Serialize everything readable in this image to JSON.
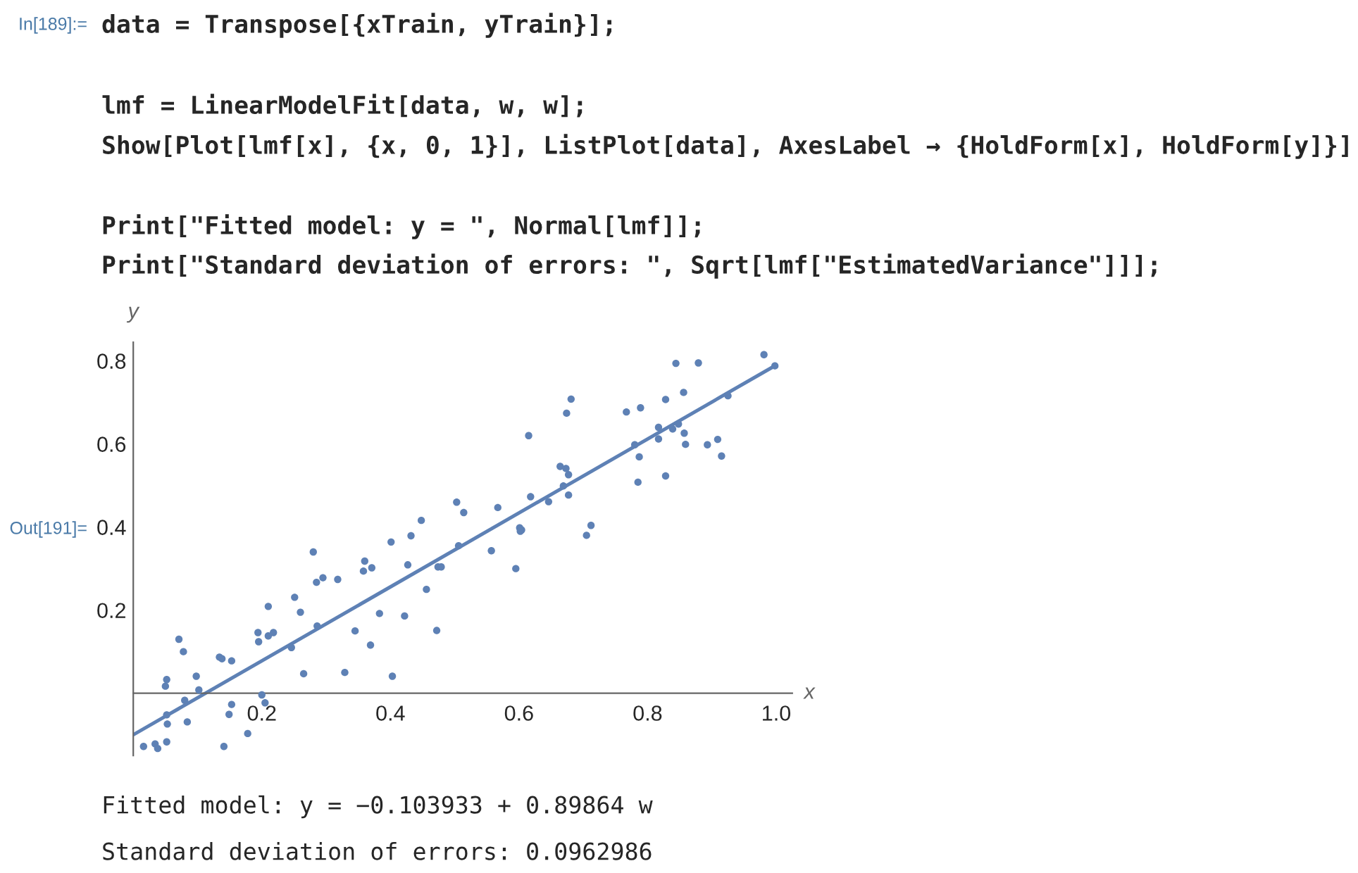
{
  "chart_data": {
    "type": "scatter",
    "xlabel": "x",
    "ylabel": "y",
    "annotations": [
      "In[189]:=",
      "data = Transpose[{xTrain, yTrain}];",
      "lmf = LinearModelFit[data, w, w];",
      "Show[Plot[lmf[x], {x, 0, 1}], ListPlot[data], AxesLabel → {HoldForm[x], HoldForm[y]}]",
      "Print[\"Fitted model: y = \", Normal[lmf]];",
      "Print[\"Standard deviation of errors: \", Sqrt[lmf[\"EstimatedVariance\"]]];",
      "Out[191]=",
      "Fitted model: y = −0.103933 + 0.89864 w",
      "Standard deviation of errors: 0.0962986"
    ],
    "xlim": [
      0,
      1.025
    ],
    "ylim": [
      -0.15,
      0.845
    ],
    "xticks": [
      0.2,
      0.4,
      0.6,
      0.8,
      {
        "value": 1,
        "label": "1.0"
      }
    ],
    "yticks": [
      0.2,
      0.4,
      0.6,
      0.8
    ],
    "grid": false,
    "legend": false,
    "series": [
      {
        "color": "#5e81b5",
        "marker": "circle",
        "x": [
          0.016,
          0.034,
          0.038,
          0.052,
          0.05,
          0.052,
          0.052,
          0.053,
          0.071,
          0.078,
          0.08,
          0.084,
          0.098,
          0.102,
          0.134,
          0.138,
          0.141,
          0.149,
          0.153,
          0.153,
          0.178,
          0.194,
          0.195,
          0.2,
          0.205,
          0.21,
          0.21,
          0.218,
          0.246,
          0.251,
          0.26,
          0.265,
          0.28,
          0.285,
          0.286,
          0.295,
          0.318,
          0.329,
          0.345,
          0.36,
          0.358,
          0.369,
          0.371,
          0.383,
          0.401,
          0.403,
          0.422,
          0.427,
          0.432,
          0.448,
          0.456,
          0.472,
          0.474,
          0.479,
          0.503,
          0.514,
          0.506,
          0.557,
          0.567,
          0.595,
          0.601,
          0.602,
          0.604,
          0.615,
          0.618,
          0.646,
          0.664,
          0.673,
          0.677,
          0.669,
          0.677,
          0.674,
          0.681,
          0.705,
          0.712,
          0.767,
          0.78,
          0.785,
          0.787,
          0.789,
          0.817,
          0.817,
          0.828,
          0.828,
          0.839,
          0.844,
          0.848,
          0.856,
          0.857,
          0.859,
          0.879,
          0.893,
          0.909,
          0.915,
          0.925,
          0.981,
          0.998
        ],
        "values": [
          -0.128,
          -0.122,
          -0.133,
          -0.117,
          0.017,
          0.033,
          -0.052,
          -0.074,
          0.13,
          0.1,
          -0.017,
          -0.069,
          0.041,
          0.008,
          0.087,
          0.083,
          -0.128,
          -0.051,
          -0.027,
          0.078,
          -0.097,
          0.146,
          0.124,
          -0.004,
          -0.023,
          0.209,
          0.138,
          0.146,
          0.11,
          0.231,
          0.195,
          0.047,
          0.34,
          0.267,
          0.162,
          0.278,
          0.274,
          0.05,
          0.15,
          0.318,
          0.294,
          0.116,
          0.302,
          0.192,
          0.364,
          0.041,
          0.186,
          0.309,
          0.379,
          0.416,
          0.25,
          0.151,
          0.304,
          0.304,
          0.46,
          0.435,
          0.355,
          0.343,
          0.447,
          0.3,
          0.398,
          0.39,
          0.393,
          0.62,
          0.473,
          0.461,
          0.546,
          0.541,
          0.526,
          0.499,
          0.477,
          0.674,
          0.708,
          0.38,
          0.404,
          0.677,
          0.598,
          0.508,
          0.569,
          0.687,
          0.64,
          0.612,
          0.707,
          0.523,
          0.636,
          0.794,
          0.648,
          0.724,
          0.626,
          0.599,
          0.795,
          0.598,
          0.611,
          0.571,
          0.716,
          0.815,
          0.788
        ]
      },
      {
        "type": "line",
        "color": "#5e81b5",
        "marker": "none",
        "line_style": "solid",
        "x": [
          0,
          1
        ],
        "values": [
          -0.1,
          0.79
        ]
      }
    ]
  }
}
